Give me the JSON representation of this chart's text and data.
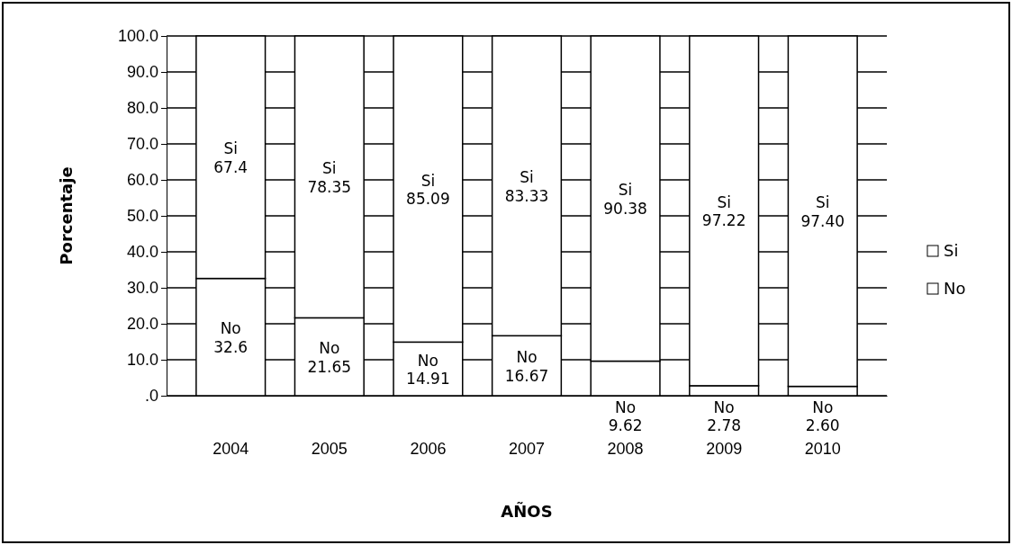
{
  "chart_data": {
    "type": "bar",
    "stacked": true,
    "xlabel": "AÑOS",
    "ylabel": "Porcentaje",
    "categories": [
      "2004",
      "2005",
      "2006",
      "2007",
      "2008",
      "2009",
      "2010"
    ],
    "series": [
      {
        "name": "No",
        "color": "#ffffff",
        "values": [
          32.6,
          21.65,
          14.91,
          16.67,
          9.62,
          2.78,
          2.6
        ],
        "value_labels": [
          "32.6",
          "21.65",
          "14.91",
          "16.67",
          "9.62",
          "2.78",
          "2.60"
        ]
      },
      {
        "name": "Si",
        "color": "#ffffff",
        "values": [
          67.4,
          78.35,
          85.09,
          83.33,
          90.38,
          97.22,
          97.4
        ],
        "value_labels": [
          "67.4",
          "78.35",
          "85.09",
          "83.33",
          "90.38",
          "97.22",
          "97.40"
        ]
      }
    ],
    "ylim": [
      0,
      100
    ],
    "yticks": [
      {
        "value": 0,
        "label": ".0"
      },
      {
        "value": 10,
        "label": "10.0"
      },
      {
        "value": 20,
        "label": "20.0"
      },
      {
        "value": 30,
        "label": "30.0"
      },
      {
        "value": 40,
        "label": "40.0"
      },
      {
        "value": 50,
        "label": "50.0"
      },
      {
        "value": 60,
        "label": "60.0"
      },
      {
        "value": 70,
        "label": "70.0"
      },
      {
        "value": 80,
        "label": "80.0"
      },
      {
        "value": 90,
        "label": "90.0"
      },
      {
        "value": 100,
        "label": "100.0"
      }
    ],
    "grid": "y",
    "legend": "right"
  }
}
